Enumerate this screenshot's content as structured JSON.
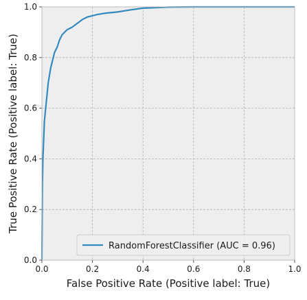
{
  "chart_data": {
    "type": "line",
    "title": "",
    "xlabel": "False Positive Rate (Positive label: True)",
    "ylabel": "True Positive Rate (Positive label: True)",
    "xlim": [
      0.0,
      1.0
    ],
    "ylim": [
      0.0,
      1.0
    ],
    "xticks": [
      "0.0",
      "0.2",
      "0.4",
      "0.6",
      "0.8",
      "1.0"
    ],
    "yticks": [
      "0.0",
      "0.2",
      "0.4",
      "0.6",
      "0.8",
      "1.0"
    ],
    "grid": true,
    "legend_position": "bottom-right",
    "series": [
      {
        "name": "RandomForestClassifier (AUC = 0.96)",
        "color": "#348abd",
        "x": [
          0.0,
          0.0,
          0.002,
          0.004,
          0.006,
          0.008,
          0.01,
          0.015,
          0.02,
          0.025,
          0.03,
          0.035,
          0.04,
          0.05,
          0.06,
          0.07,
          0.08,
          0.09,
          0.1,
          0.12,
          0.14,
          0.16,
          0.18,
          0.2,
          0.22,
          0.25,
          0.3,
          0.35,
          0.4,
          0.5,
          0.6,
          0.8,
          1.0
        ],
        "y": [
          0.0,
          0.02,
          0.3,
          0.4,
          0.45,
          0.5,
          0.55,
          0.6,
          0.65,
          0.7,
          0.73,
          0.76,
          0.78,
          0.82,
          0.84,
          0.87,
          0.89,
          0.9,
          0.91,
          0.92,
          0.935,
          0.95,
          0.96,
          0.965,
          0.97,
          0.975,
          0.98,
          0.988,
          0.995,
          0.999,
          1.0,
          1.0,
          1.0
        ]
      }
    ],
    "style": {
      "axes_facecolor": "#eeeeee",
      "grid_color": "#b2b2b2",
      "spine_color": "#bcbcbc"
    }
  }
}
